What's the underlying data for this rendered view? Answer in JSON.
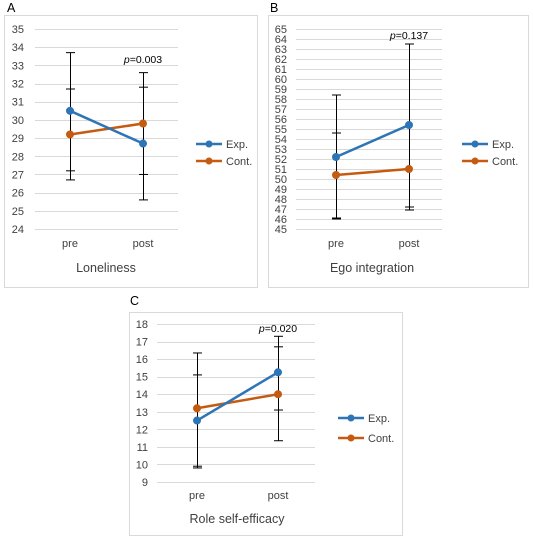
{
  "colors": {
    "exp": "#2E75B6",
    "cont": "#C55A11"
  },
  "chart_data": [
    {
      "type": "line",
      "panel_label": "A",
      "xlabel": "Loneliness",
      "ylabel": "",
      "categories": [
        "pre",
        "post"
      ],
      "ylim": [
        24,
        35
      ],
      "yticks": [
        "24",
        "25",
        "26",
        "27",
        "28",
        "29",
        "30",
        "31",
        "32",
        "33",
        "34",
        "35"
      ],
      "grid": true,
      "legend_position": "right",
      "annotation": {
        "prefix": "p",
        "text": "=0.003"
      },
      "series": [
        {
          "name": "Exp.",
          "color_key": "exp",
          "values": [
            30.5,
            28.7
          ],
          "error_high": [
            33.7,
            31.8
          ],
          "error_low": [
            27.2,
            25.6
          ]
        },
        {
          "name": "Cont.",
          "color_key": "cont",
          "values": [
            29.2,
            29.8
          ],
          "error_high": [
            31.7,
            32.6
          ],
          "error_low": [
            26.7,
            27.0
          ]
        }
      ]
    },
    {
      "type": "line",
      "panel_label": "B",
      "xlabel": "Ego integration",
      "ylabel": "",
      "categories": [
        "pre",
        "post"
      ],
      "ylim": [
        45,
        65
      ],
      "yticks": [
        "45",
        "46",
        "47",
        "48",
        "49",
        "50",
        "51",
        "52",
        "53",
        "54",
        "55",
        "56",
        "57",
        "58",
        "59",
        "60",
        "61",
        "62",
        "63",
        "64",
        "65"
      ],
      "grid": true,
      "legend_position": "right",
      "annotation": {
        "prefix": "p",
        "text": "=0.137"
      },
      "series": [
        {
          "name": "Exp.",
          "color_key": "exp",
          "values": [
            52.2,
            55.4
          ],
          "error_high": [
            58.4,
            63.5
          ],
          "error_low": [
            46.0,
            47.2
          ]
        },
        {
          "name": "Cont.",
          "color_key": "cont",
          "values": [
            50.4,
            51.0
          ],
          "error_high": [
            54.6,
            63.5
          ],
          "error_low": [
            46.1,
            46.9
          ]
        }
      ]
    },
    {
      "type": "line",
      "panel_label": "C",
      "xlabel": "Role self-efficacy",
      "ylabel": "",
      "categories": [
        "pre",
        "post"
      ],
      "ylim": [
        9,
        18
      ],
      "yticks": [
        "9",
        "10",
        "11",
        "12",
        "13",
        "14",
        "15",
        "16",
        "17",
        "18"
      ],
      "grid": true,
      "legend_position": "right",
      "annotation": {
        "prefix": "p",
        "text": "=0.020"
      },
      "series": [
        {
          "name": "Exp.",
          "color_key": "exp",
          "values": [
            12.5,
            15.25
          ],
          "error_high": [
            15.1,
            17.3
          ],
          "error_low": [
            9.9,
            13.1
          ]
        },
        {
          "name": "Cont.",
          "color_key": "cont",
          "values": [
            13.2,
            14.0
          ],
          "error_high": [
            16.35,
            16.7
          ],
          "error_low": [
            9.8,
            11.35
          ]
        }
      ]
    }
  ]
}
